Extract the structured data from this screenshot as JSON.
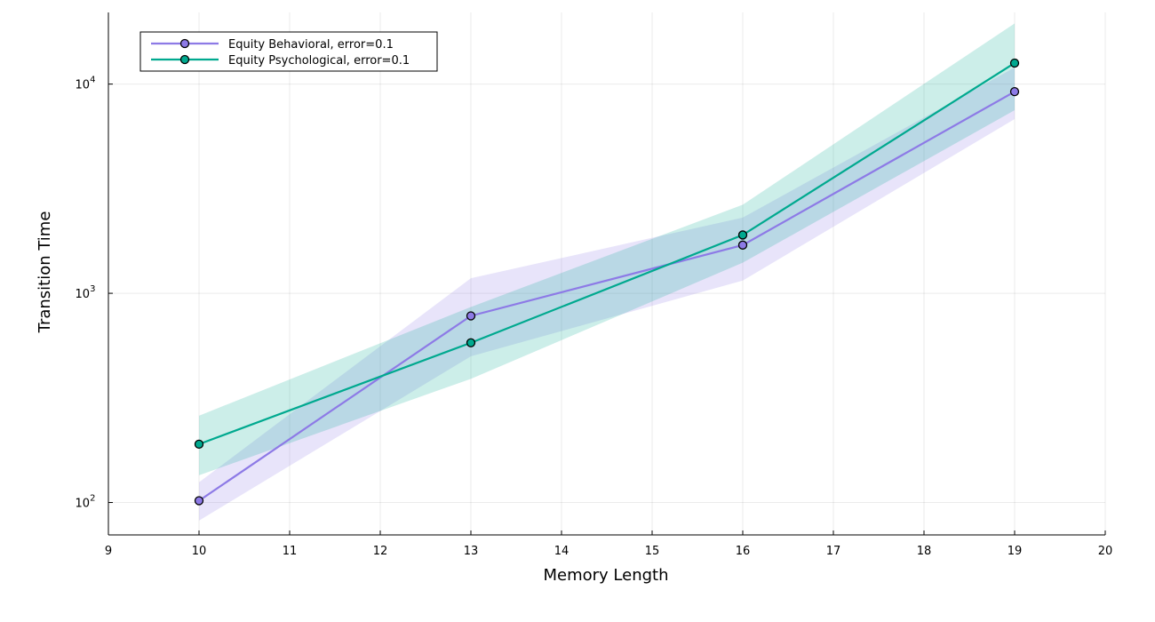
{
  "chart_data": {
    "type": "line",
    "xlabel": "Memory Length",
    "ylabel": "Transition Time",
    "xlim": [
      9,
      20
    ],
    "ylim": [
      70,
      22000
    ],
    "yscale": "log",
    "xticks": [
      "9",
      "10",
      "11",
      "12",
      "13",
      "14",
      "15",
      "16",
      "17",
      "18",
      "19",
      "20"
    ],
    "yticks": [
      {
        "value": 100,
        "base": "10",
        "exp": "2"
      },
      {
        "value": 1000,
        "base": "10",
        "exp": "3"
      },
      {
        "value": 10000,
        "base": "10",
        "exp": "4"
      }
    ],
    "grid": true,
    "legend_position": "top-left",
    "series": [
      {
        "name": "Equity Behavioral, error=0.1",
        "color": "#8d7ae6",
        "x": [
          10,
          13,
          16,
          19
        ],
        "y": [
          102,
          780,
          1700,
          9200
        ],
        "lower": [
          82,
          500,
          1150,
          6800
        ],
        "upper": [
          125,
          1180,
          2300,
          12000
        ]
      },
      {
        "name": "Equity Psychological, error=0.1",
        "color": "#00a98f",
        "x": [
          10,
          13,
          16,
          19
        ],
        "y": [
          190,
          580,
          1900,
          12600
        ],
        "lower": [
          135,
          390,
          1400,
          7500
        ],
        "upper": [
          260,
          860,
          2650,
          19500
        ]
      }
    ]
  }
}
